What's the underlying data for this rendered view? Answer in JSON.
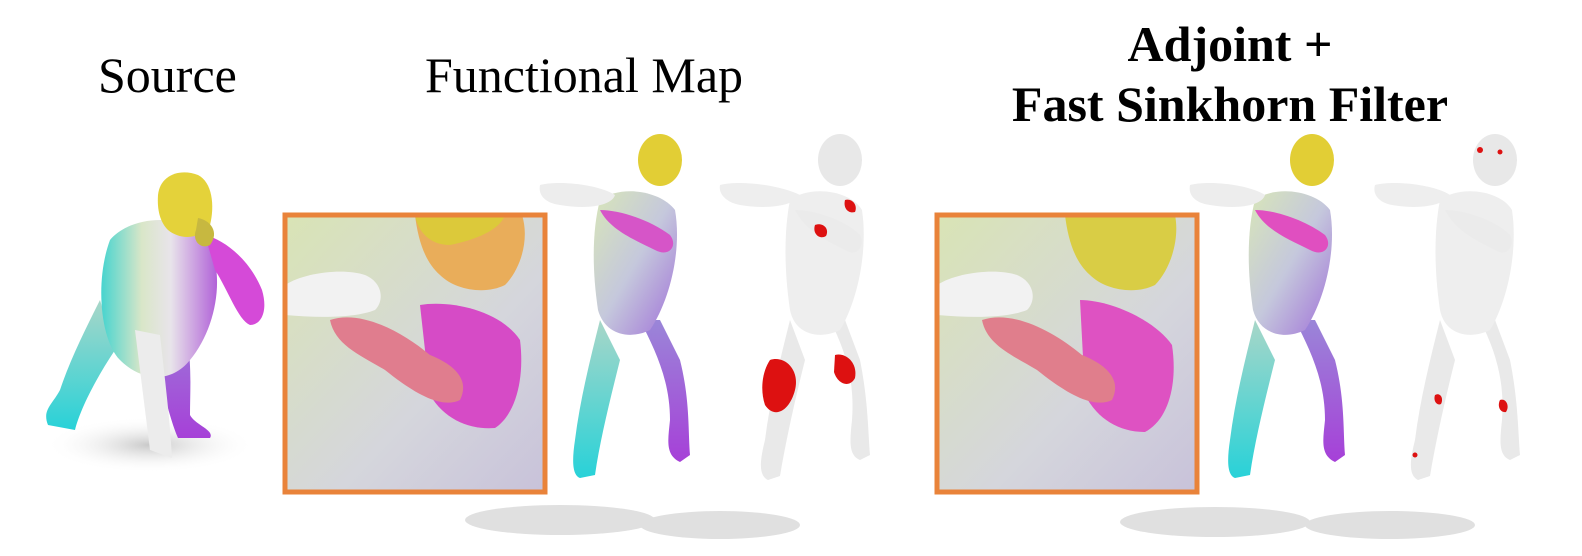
{
  "figure": {
    "columns": [
      {
        "title": "Source"
      },
      {
        "title": "Functional Map"
      },
      {
        "title_line1": "Adjoint +",
        "title_line2": "Fast Sinkhorn Filter"
      }
    ],
    "colors": {
      "inset_frame": "#e9833a",
      "error": "#dd1111",
      "shadow": "#cfcfcf",
      "gray_mesh": "#e6e6e6"
    }
  }
}
